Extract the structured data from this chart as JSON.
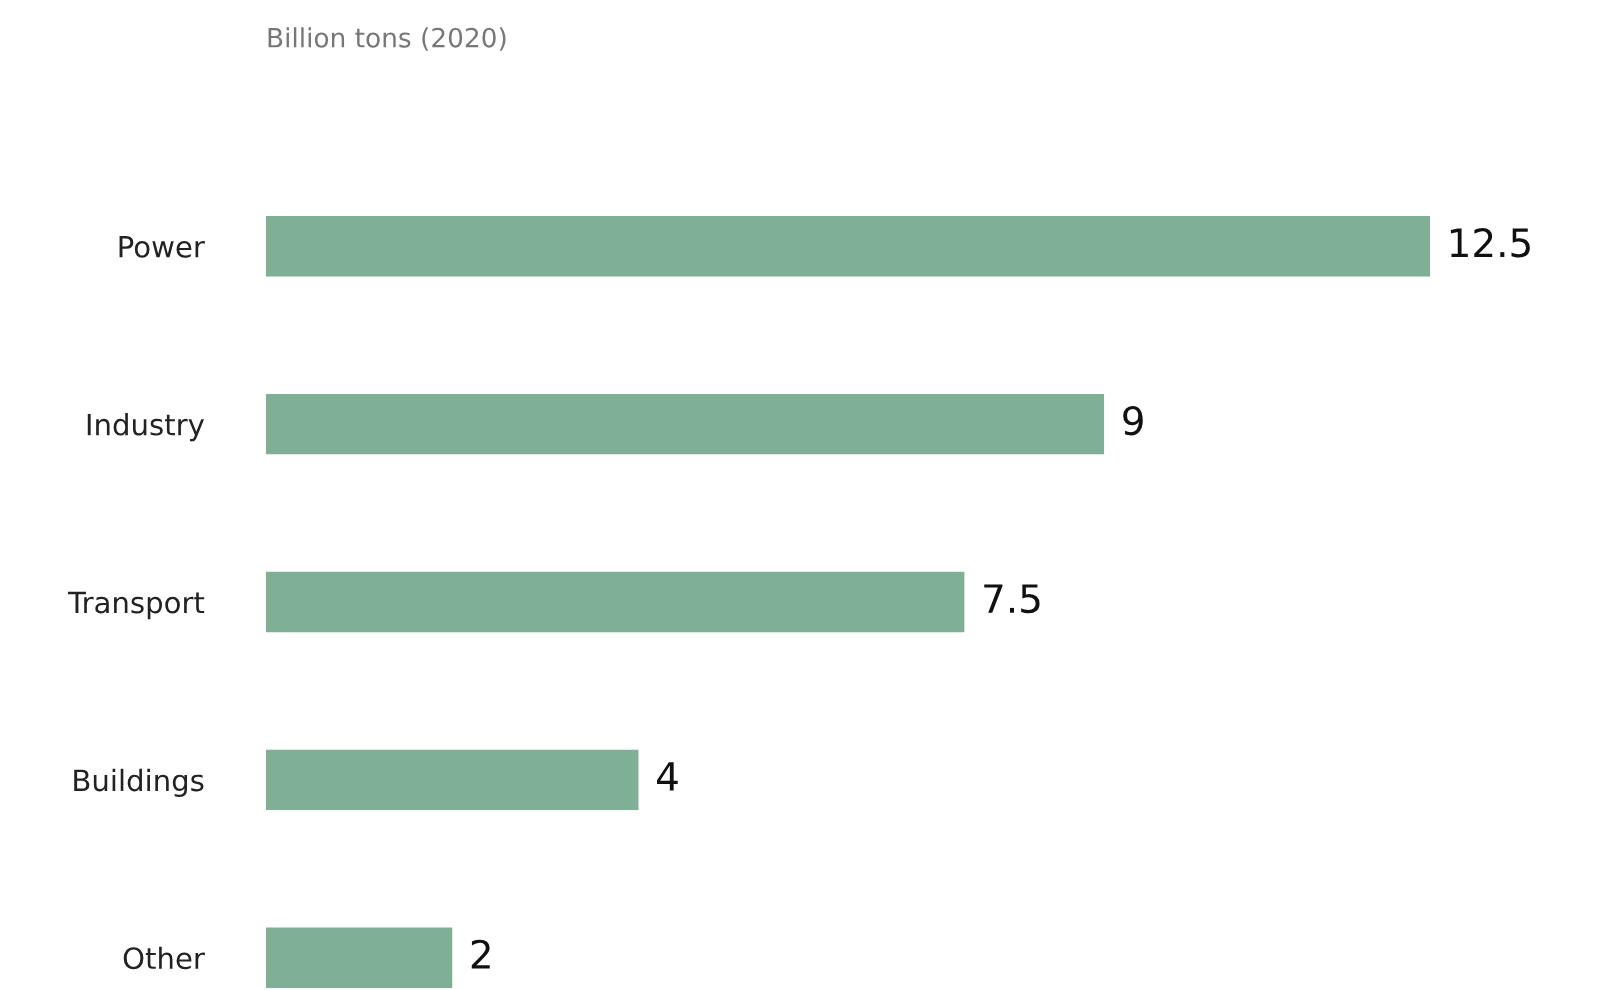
{
  "chart_data": {
    "type": "bar",
    "orientation": "horizontal",
    "title": "Billion tons (2020)",
    "categories": [
      "Power",
      "Industry",
      "Transport",
      "Buildings",
      "Other"
    ],
    "values": [
      12.5,
      9,
      7.5,
      4,
      2
    ],
    "color": "#7fb095",
    "data_labels": true,
    "grid": false,
    "legend": false
  }
}
